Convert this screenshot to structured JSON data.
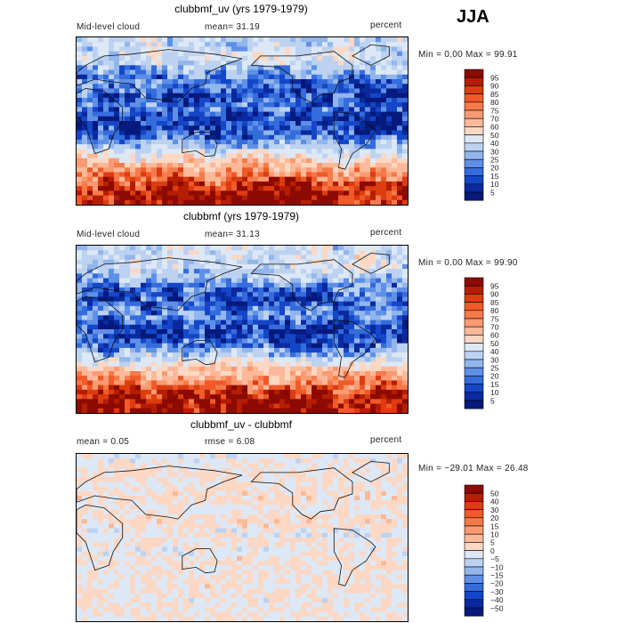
{
  "season": "JJA",
  "panels": [
    {
      "title": "clubbmf_uv (yrs 1979-1979)",
      "left_label": "Mid-level cloud",
      "center_label": "mean=  31.19",
      "right_label": "percent",
      "minmax": "Min =   0.00 Max =  99.91"
    },
    {
      "title": "clubbmf (yrs 1979-1979)",
      "left_label": "Mid-level cloud",
      "center_label": "mean=  31.13",
      "right_label": "percent",
      "minmax": "Min =   0.00 Max =  99.90"
    },
    {
      "title": "clubbmf_uv - clubbmf",
      "left_label": "mean =    0.05",
      "center_label": "rmse =    6.08",
      "right_label": "percent",
      "minmax": "Min = −29.01 Max =  26.48"
    }
  ],
  "chart_data": [
    {
      "type": "heatmap",
      "title": "clubbmf_uv (yrs 1979-1979)",
      "variable": "Mid-level cloud",
      "units": "percent",
      "mean": 31.19,
      "min": 0.0,
      "max": 99.91,
      "colorbar_levels": [
        "95",
        "90",
        "85",
        "80",
        "75",
        "70",
        "60",
        "50",
        "40",
        "30",
        "25",
        "20",
        "15",
        "10",
        "5"
      ],
      "colorbar_colors": [
        "#8c0a00",
        "#b41e00",
        "#dc3c10",
        "#f05a28",
        "#f57a4a",
        "#f99a72",
        "#fbb999",
        "#fcd8c4",
        "#dde8f7",
        "#bcd2f0",
        "#92b6ec",
        "#5f90e8",
        "#356cdc",
        "#1546c8",
        "#0a2a9e",
        "#051a7c"
      ],
      "lat_profile": [
        {
          "lat": 85,
          "value": 38
        },
        {
          "lat": 70,
          "value": 42
        },
        {
          "lat": 55,
          "value": 30
        },
        {
          "lat": 45,
          "value": 18
        },
        {
          "lat": 30,
          "value": 12
        },
        {
          "lat": 15,
          "value": 20
        },
        {
          "lat": 5,
          "value": 10
        },
        {
          "lat": -5,
          "value": 8
        },
        {
          "lat": -15,
          "value": 14
        },
        {
          "lat": -25,
          "value": 30
        },
        {
          "lat": -35,
          "value": 45
        },
        {
          "lat": -45,
          "value": 62
        },
        {
          "lat": -55,
          "value": 70
        },
        {
          "lat": -65,
          "value": 86
        },
        {
          "lat": -80,
          "value": 94
        }
      ]
    },
    {
      "type": "heatmap",
      "title": "clubbmf (yrs 1979-1979)",
      "variable": "Mid-level cloud",
      "units": "percent",
      "mean": 31.13,
      "min": 0.0,
      "max": 99.9,
      "colorbar_levels": [
        "95",
        "90",
        "85",
        "80",
        "75",
        "70",
        "60",
        "50",
        "40",
        "30",
        "25",
        "20",
        "15",
        "10",
        "5"
      ],
      "colorbar_colors": [
        "#8c0a00",
        "#b41e00",
        "#dc3c10",
        "#f05a28",
        "#f57a4a",
        "#f99a72",
        "#fbb999",
        "#fcd8c4",
        "#dde8f7",
        "#bcd2f0",
        "#92b6ec",
        "#5f90e8",
        "#356cdc",
        "#1546c8",
        "#0a2a9e",
        "#051a7c"
      ],
      "lat_profile": [
        {
          "lat": 85,
          "value": 40
        },
        {
          "lat": 70,
          "value": 44
        },
        {
          "lat": 55,
          "value": 32
        },
        {
          "lat": 45,
          "value": 20
        },
        {
          "lat": 30,
          "value": 13
        },
        {
          "lat": 15,
          "value": 22
        },
        {
          "lat": 5,
          "value": 11
        },
        {
          "lat": -5,
          "value": 9
        },
        {
          "lat": -15,
          "value": 15
        },
        {
          "lat": -25,
          "value": 31
        },
        {
          "lat": -35,
          "value": 46
        },
        {
          "lat": -45,
          "value": 63
        },
        {
          "lat": -55,
          "value": 71
        },
        {
          "lat": -65,
          "value": 87
        },
        {
          "lat": -80,
          "value": 95
        }
      ]
    },
    {
      "type": "heatmap",
      "title": "clubbmf_uv - clubbmf",
      "units": "percent",
      "mean": 0.05,
      "rmse": 6.08,
      "min": -29.01,
      "max": 26.48,
      "colorbar_levels": [
        "50",
        "40",
        "30",
        "20",
        "15",
        "10",
        "5",
        "0",
        "−5",
        "−10",
        "−15",
        "−20",
        "−30",
        "−40",
        "−50"
      ],
      "colorbar_colors": [
        "#8c0a00",
        "#b41e00",
        "#dc3c10",
        "#f05a28",
        "#f57a4a",
        "#f99a72",
        "#fbb999",
        "#fcd8c4",
        "#dde8f7",
        "#bcd2f0",
        "#92b6ec",
        "#5f90e8",
        "#356cdc",
        "#1546c8",
        "#0a2a9e",
        "#051a7c"
      ],
      "lat_profile": [
        {
          "lat": 85,
          "value": -2
        },
        {
          "lat": 70,
          "value": 1
        },
        {
          "lat": 55,
          "value": 0
        },
        {
          "lat": 45,
          "value": 2
        },
        {
          "lat": 30,
          "value": -1
        },
        {
          "lat": 15,
          "value": 3
        },
        {
          "lat": 5,
          "value": -3
        },
        {
          "lat": -5,
          "value": 1
        },
        {
          "lat": -15,
          "value": -2
        },
        {
          "lat": -25,
          "value": 2
        },
        {
          "lat": -35,
          "value": -1
        },
        {
          "lat": -45,
          "value": 0
        },
        {
          "lat": -55,
          "value": 1
        },
        {
          "lat": -65,
          "value": -1
        },
        {
          "lat": -80,
          "value": 0
        }
      ]
    }
  ]
}
